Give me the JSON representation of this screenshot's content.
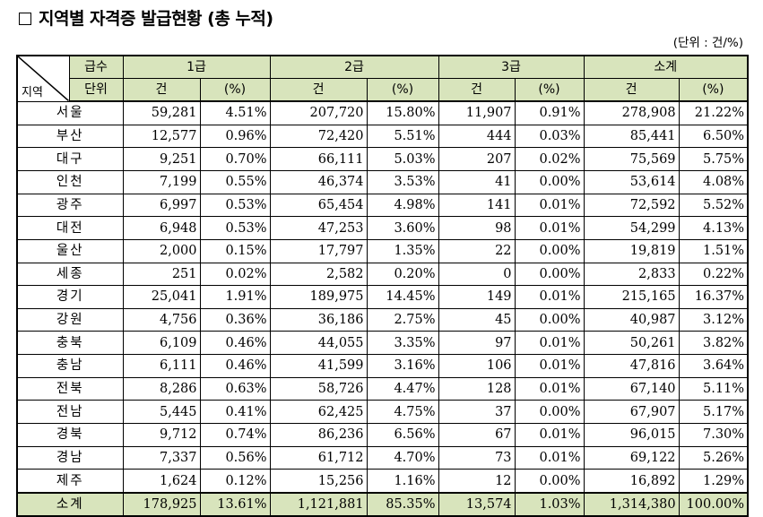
{
  "title": "지역별 자격증 발급현황 (총 누적)",
  "unit": "(단위 : 건/%)",
  "header": {
    "grade_label": "급수",
    "unit_label": "단위",
    "region_label": "지역",
    "groups": [
      "1급",
      "2급",
      "3급",
      "소계"
    ],
    "count_label": "건",
    "pct_label": "(%)"
  },
  "rows": [
    {
      "region": "서울",
      "v": [
        "59,281",
        "4.51%",
        "207,720",
        "15.80%",
        "11,907",
        "0.91%",
        "278,908",
        "21.22%"
      ]
    },
    {
      "region": "부산",
      "v": [
        "12,577",
        "0.96%",
        "72,420",
        "5.51%",
        "444",
        "0.03%",
        "85,441",
        "6.50%"
      ]
    },
    {
      "region": "대구",
      "v": [
        "9,251",
        "0.70%",
        "66,111",
        "5.03%",
        "207",
        "0.02%",
        "75,569",
        "5.75%"
      ]
    },
    {
      "region": "인천",
      "v": [
        "7,199",
        "0.55%",
        "46,374",
        "3.53%",
        "41",
        "0.00%",
        "53,614",
        "4.08%"
      ]
    },
    {
      "region": "광주",
      "v": [
        "6,997",
        "0.53%",
        "65,454",
        "4.98%",
        "141",
        "0.01%",
        "72,592",
        "5.52%"
      ]
    },
    {
      "region": "대전",
      "v": [
        "6,948",
        "0.53%",
        "47,253",
        "3.60%",
        "98",
        "0.01%",
        "54,299",
        "4.13%"
      ]
    },
    {
      "region": "울산",
      "v": [
        "2,000",
        "0.15%",
        "17,797",
        "1.35%",
        "22",
        "0.00%",
        "19,819",
        "1.51%"
      ]
    },
    {
      "region": "세종",
      "v": [
        "251",
        "0.02%",
        "2,582",
        "0.20%",
        "0",
        "0.00%",
        "2,833",
        "0.22%"
      ]
    },
    {
      "region": "경기",
      "v": [
        "25,041",
        "1.91%",
        "189,975",
        "14.45%",
        "149",
        "0.01%",
        "215,165",
        "16.37%"
      ]
    },
    {
      "region": "강원",
      "v": [
        "4,756",
        "0.36%",
        "36,186",
        "2.75%",
        "45",
        "0.00%",
        "40,987",
        "3.12%"
      ]
    },
    {
      "region": "충북",
      "v": [
        "6,109",
        "0.46%",
        "44,055",
        "3.35%",
        "97",
        "0.01%",
        "50,261",
        "3.82%"
      ]
    },
    {
      "region": "충남",
      "v": [
        "6,111",
        "0.46%",
        "41,599",
        "3.16%",
        "106",
        "0.01%",
        "47,816",
        "3.64%"
      ]
    },
    {
      "region": "전북",
      "v": [
        "8,286",
        "0.63%",
        "58,726",
        "4.47%",
        "128",
        "0.01%",
        "67,140",
        "5.11%"
      ]
    },
    {
      "region": "전남",
      "v": [
        "5,445",
        "0.41%",
        "62,425",
        "4.75%",
        "37",
        "0.00%",
        "67,907",
        "5.17%"
      ]
    },
    {
      "region": "경북",
      "v": [
        "9,712",
        "0.74%",
        "86,236",
        "6.56%",
        "67",
        "0.01%",
        "96,015",
        "7.30%"
      ]
    },
    {
      "region": "경남",
      "v": [
        "7,337",
        "0.56%",
        "61,712",
        "4.70%",
        "73",
        "0.01%",
        "69,122",
        "5.26%"
      ]
    },
    {
      "region": "제주",
      "v": [
        "1,624",
        "0.12%",
        "15,256",
        "1.16%",
        "12",
        "0.00%",
        "16,892",
        "1.29%"
      ]
    }
  ],
  "total": {
    "region": "소계",
    "v": [
      "178,925",
      "13.61%",
      "1,121,881",
      "85.35%",
      "13,574",
      "1.03%",
      "1,314,380",
      "100.00%"
    ]
  }
}
